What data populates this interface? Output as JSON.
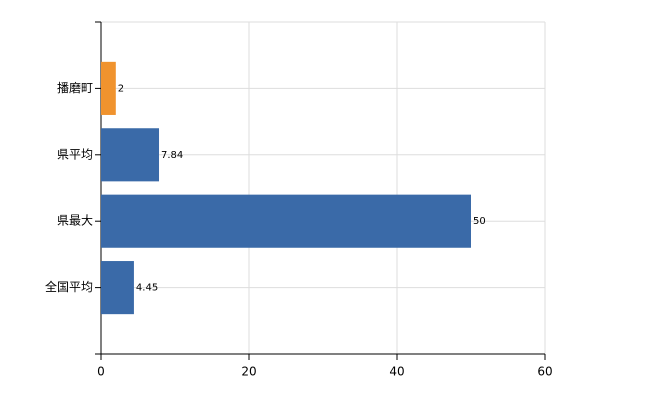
{
  "chart_data": {
    "type": "barh",
    "categories": [
      "播磨町",
      "県平均",
      "県最大",
      "全国平均"
    ],
    "values": [
      2,
      7.84,
      50,
      4.45
    ],
    "colors": [
      "#f0932e",
      "#3a6aa8",
      "#3a6aa8",
      "#3a6aa8"
    ],
    "xlim": [
      0,
      60
    ],
    "xticks": [
      0,
      20,
      40,
      60
    ],
    "grid": true
  }
}
